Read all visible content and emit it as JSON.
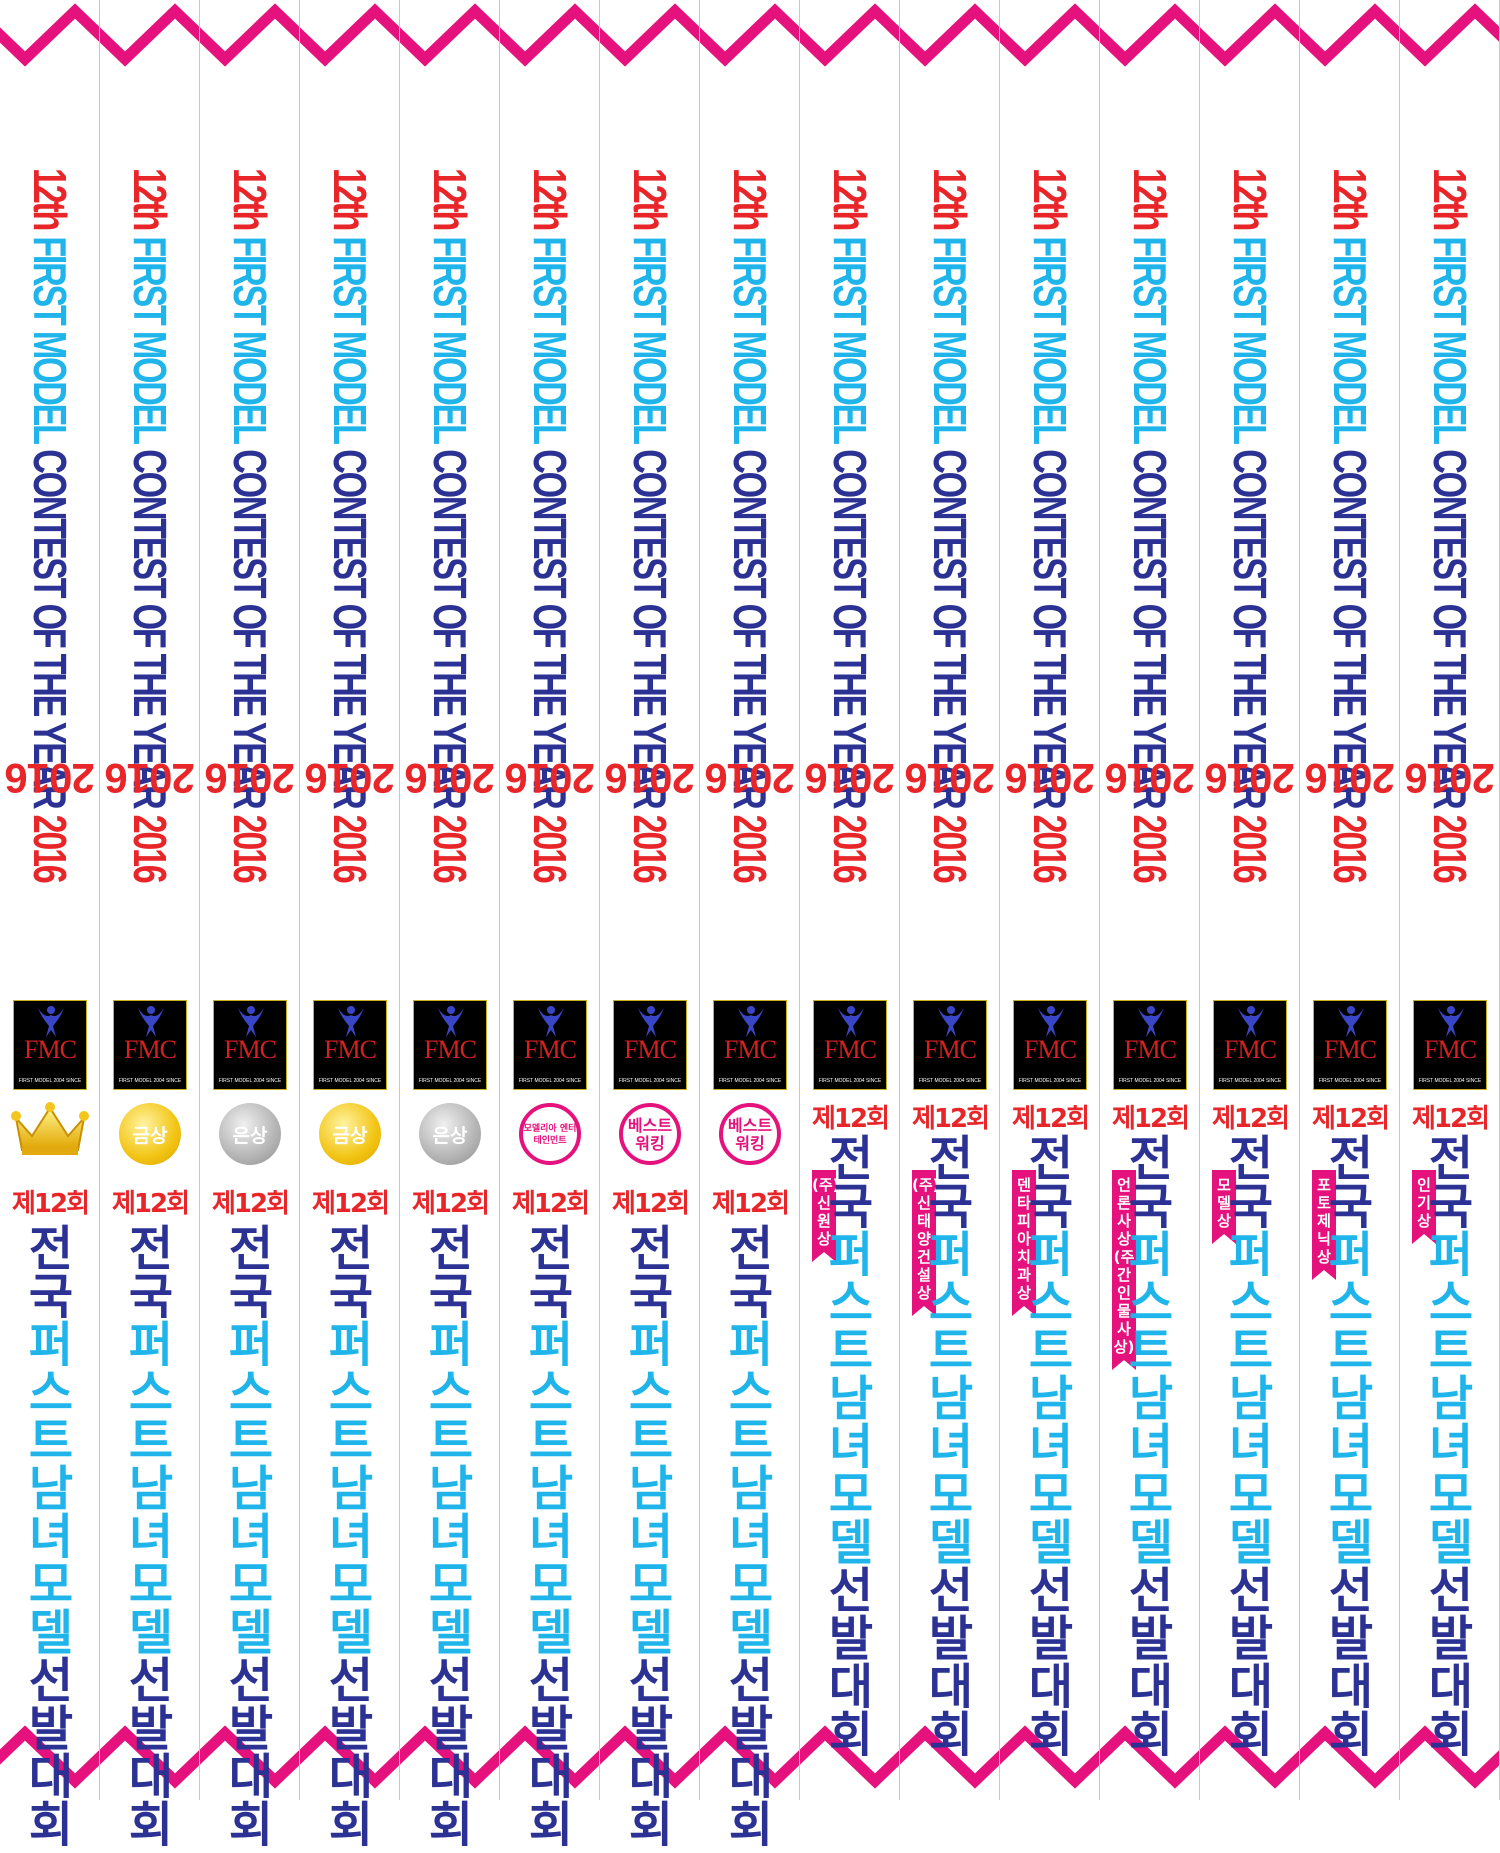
{
  "event": {
    "title_prefix": "12th",
    "title_cyan": "FIRST MODEL",
    "title_blue": "CONTEST OF THE YEAR",
    "title_year": "2016",
    "year_inverted": "2016",
    "logo_text": "FMC",
    "logo_tagline": "FIRST MODEL 2004 SINCE",
    "edition": "제12회",
    "name_part1": "전국",
    "name_part2": "퍼스트",
    "name_part3": "남녀모델",
    "name_part4": "선발대회"
  },
  "colors": {
    "pink": "#e5117c",
    "red": "#e8262a",
    "cyan": "#1fb4ea",
    "navy": "#2b3293"
  },
  "sashes": [
    {
      "badge_type": "crown-icon",
      "badge_text": ""
    },
    {
      "badge_type": "gold",
      "badge_text": "금상"
    },
    {
      "badge_type": "silver",
      "badge_text": "은상"
    },
    {
      "badge_type": "gold",
      "badge_text": "금상"
    },
    {
      "badge_type": "silver",
      "badge_text": "은상"
    },
    {
      "badge_type": "ring-small",
      "badge_text": "모델리아 엔터테인먼트"
    },
    {
      "badge_type": "ring",
      "badge_text": "베스트 워킹"
    },
    {
      "badge_type": "ring",
      "badge_text": "베스트 워킹"
    },
    {
      "badge_type": "ribbon",
      "badge_text": "(주) 신원 상"
    },
    {
      "badge_type": "ribbon",
      "badge_text": "(주)신태양건설 상"
    },
    {
      "badge_type": "ribbon",
      "badge_text": "덴타피아치과 상"
    },
    {
      "badge_type": "ribbon",
      "badge_text": "언론사 상 (주간인물사상)"
    },
    {
      "badge_type": "ribbon",
      "badge_text": "모델상"
    },
    {
      "badge_type": "ribbon",
      "badge_text": "포토제닉 상"
    },
    {
      "badge_type": "ribbon",
      "badge_text": "인기상"
    }
  ]
}
